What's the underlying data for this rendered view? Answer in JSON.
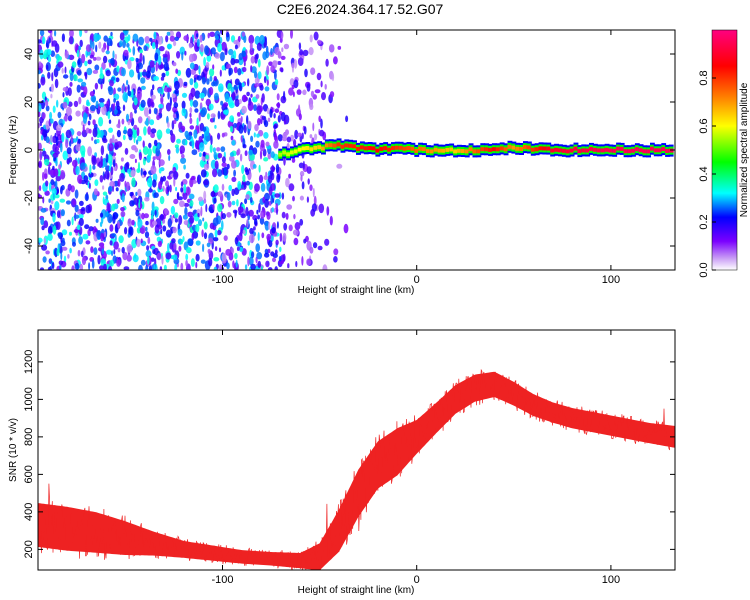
{
  "title": "C2E6.2024.364.17.52.G07",
  "chart_data": [
    {
      "type": "heatmap",
      "xlabel": "Height of straight line (km)",
      "ylabel": "Frequency (Hz)",
      "xlim": [
        -195,
        133
      ],
      "ylim": [
        -50,
        50
      ],
      "x_ticks": [
        -100,
        0,
        100
      ],
      "x_tick_labels": [
        "-100",
        "0",
        "100"
      ],
      "y_ticks": [
        -40,
        -20,
        0,
        20,
        40
      ],
      "y_tick_labels": [
        "-40",
        "-20",
        "0",
        "20",
        "40"
      ],
      "colorbar": {
        "label": "Normalized spectral amplitude",
        "range": [
          0,
          1
        ],
        "ticks": [
          0.0,
          0.2,
          0.4,
          0.6,
          0.8
        ],
        "tick_labels": [
          "0.0",
          "0.2",
          "0.4",
          "0.6",
          "0.8"
        ],
        "colors": [
          "#ffffff",
          "#c89bf5",
          "#7b00ff",
          "#0000ff",
          "#00ffff",
          "#00ff00",
          "#ffff00",
          "#ff8000",
          "#ff0000",
          "#ff0080"
        ]
      },
      "noise_region": {
        "x": [
          -195,
          -40
        ],
        "amplitude": [
          0.05,
          0.35
        ]
      },
      "signal_ridge": [
        {
          "x": -70,
          "freq": -2,
          "amp": 0.55
        },
        {
          "x": -60,
          "freq": 0,
          "amp": 0.6
        },
        {
          "x": -50,
          "freq": 1,
          "amp": 0.65
        },
        {
          "x": -40,
          "freq": 2,
          "amp": 0.8
        },
        {
          "x": -20,
          "freq": 0,
          "amp": 0.85
        },
        {
          "x": -10,
          "freq": 1,
          "amp": 0.8
        },
        {
          "x": 0,
          "freq": 0,
          "amp": 0.75
        },
        {
          "x": 20,
          "freq": 0,
          "amp": 0.65
        },
        {
          "x": 40,
          "freq": 0,
          "amp": 0.85
        },
        {
          "x": 50,
          "freq": 1,
          "amp": 0.7
        },
        {
          "x": 70,
          "freq": 0,
          "amp": 0.9
        },
        {
          "x": 100,
          "freq": 0,
          "amp": 0.95
        },
        {
          "x": 133,
          "freq": 0,
          "amp": 0.95
        }
      ]
    },
    {
      "type": "line",
      "xlabel": "Height of straight line (km)",
      "ylabel": "SNR (10 * v/v)",
      "xlim": [
        -195,
        133
      ],
      "ylim": [
        90,
        1370
      ],
      "x_ticks": [
        -100,
        0,
        100
      ],
      "x_tick_labels": [
        "-100",
        "0",
        "100"
      ],
      "y_ticks": [
        200,
        400,
        600,
        800,
        1000,
        1200
      ],
      "y_tick_labels": [
        "200",
        "400",
        "600",
        "800",
        "1000",
        "1200"
      ],
      "color": "#ee2222",
      "x": [
        -195,
        -180,
        -165,
        -150,
        -135,
        -120,
        -105,
        -90,
        -75,
        -60,
        -50,
        -40,
        -30,
        -20,
        -10,
        0,
        10,
        20,
        30,
        40,
        50,
        60,
        70,
        80,
        90,
        100,
        110,
        120,
        133
      ],
      "y": [
        330,
        310,
        290,
        260,
        230,
        200,
        180,
        160,
        150,
        140,
        160,
        300,
        500,
        650,
        720,
        800,
        900,
        1000,
        1060,
        1080,
        1030,
        970,
        930,
        900,
        880,
        860,
        840,
        820,
        800
      ],
      "spread": [
        260,
        260,
        240,
        200,
        140,
        100,
        90,
        80,
        80,
        90,
        160,
        250,
        280,
        280,
        280,
        200,
        180,
        170,
        160,
        150,
        140,
        130,
        120,
        120,
        120,
        120,
        120,
        120,
        130
      ]
    }
  ]
}
